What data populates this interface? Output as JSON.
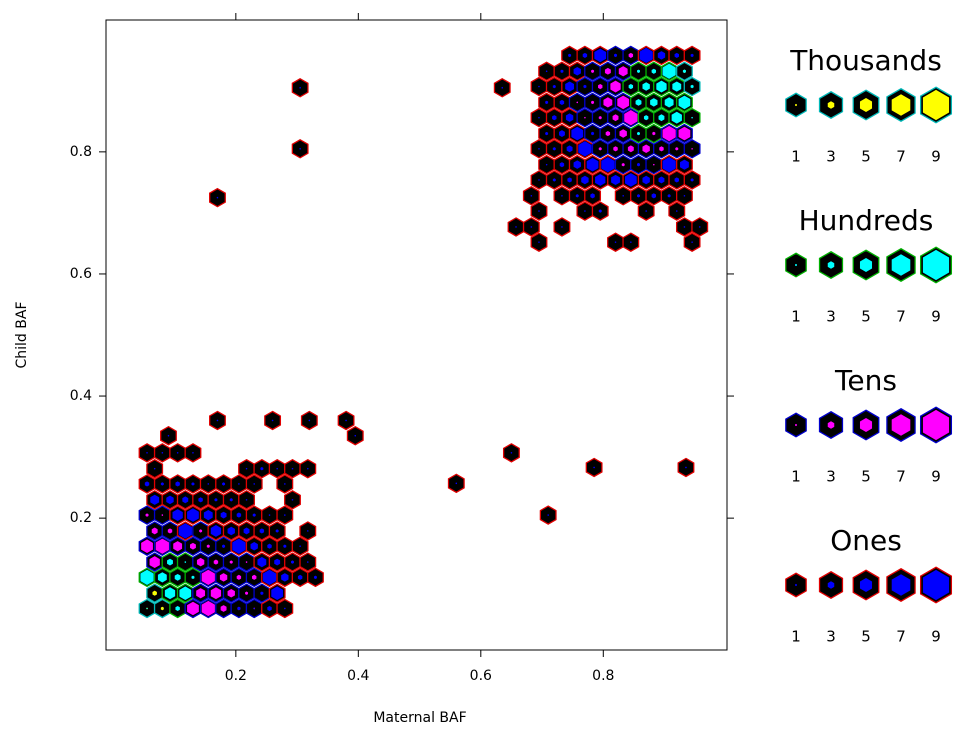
{
  "chart_data": {
    "type": "hexbin",
    "xlabel": "Maternal BAF",
    "ylabel": "Child BAF",
    "xlim": [
      -0.012,
      1.002
    ],
    "ylim": [
      -0.016,
      1.016
    ],
    "xticks": [
      0.2,
      0.4,
      0.6,
      0.8
    ],
    "yticks": [
      0.2,
      0.4,
      0.6,
      0.8
    ],
    "place_colors": {
      "border": [
        "#e00000",
        "#0000cc",
        "#00b000",
        "#00b8b8"
      ],
      "fill": [
        "#0000ff",
        "#ff00ff",
        "#00ffff",
        "#ffff00"
      ],
      "background": "#000000"
    },
    "x": [
      0.055,
      0.08,
      0.105,
      0.13,
      0.155,
      0.18,
      0.205,
      0.23,
      0.255,
      0.28,
      0.0675,
      0.0925,
      0.1175,
      0.1425,
      0.1675,
      0.1925,
      0.2175,
      0.2425,
      0.2675,
      0.055,
      0.08,
      0.105,
      0.13,
      0.155,
      0.18,
      0.205,
      0.23,
      0.255,
      0.28,
      0.305,
      0.33,
      0.0675,
      0.0925,
      0.1175,
      0.1425,
      0.1675,
      0.1925,
      0.2175,
      0.2425,
      0.2675,
      0.2925,
      0.3175,
      0.055,
      0.08,
      0.105,
      0.13,
      0.155,
      0.18,
      0.205,
      0.23,
      0.255,
      0.28,
      0.305,
      0.0675,
      0.0925,
      0.1175,
      0.1425,
      0.1675,
      0.1925,
      0.2175,
      0.2425,
      0.2675,
      0.3175,
      0.055,
      0.08,
      0.105,
      0.13,
      0.155,
      0.18,
      0.205,
      0.23,
      0.255,
      0.28,
      0.0675,
      0.0925,
      0.1175,
      0.1425,
      0.1675,
      0.1925,
      0.2175,
      0.2925,
      0.055,
      0.08,
      0.105,
      0.13,
      0.155,
      0.18,
      0.205,
      0.23,
      0.28,
      0.0675,
      0.2175,
      0.2425,
      0.2675,
      0.2925,
      0.3175,
      0.055,
      0.08,
      0.105,
      0.13,
      0.745,
      0.77,
      0.795,
      0.82,
      0.845,
      0.87,
      0.895,
      0.92,
      0.945,
      0.7075,
      0.7325,
      0.7575,
      0.7825,
      0.8075,
      0.8325,
      0.8575,
      0.8825,
      0.9075,
      0.9325,
      0.695,
      0.72,
      0.745,
      0.77,
      0.795,
      0.82,
      0.845,
      0.87,
      0.895,
      0.92,
      0.945,
      0.7075,
      0.7325,
      0.7575,
      0.7825,
      0.8075,
      0.8325,
      0.8575,
      0.8825,
      0.9075,
      0.9325,
      0.695,
      0.72,
      0.745,
      0.77,
      0.795,
      0.82,
      0.845,
      0.87,
      0.895,
      0.92,
      0.945,
      0.7075,
      0.7325,
      0.7575,
      0.7825,
      0.8075,
      0.8325,
      0.8575,
      0.8825,
      0.9075,
      0.9325,
      0.695,
      0.72,
      0.745,
      0.77,
      0.795,
      0.82,
      0.845,
      0.87,
      0.895,
      0.92,
      0.945,
      0.7075,
      0.7325,
      0.7575,
      0.7825,
      0.8075,
      0.8325,
      0.8575,
      0.8825,
      0.9075,
      0.9325,
      0.695,
      0.72,
      0.745,
      0.77,
      0.795,
      0.82,
      0.845,
      0.87,
      0.895,
      0.92,
      0.945,
      0.6825,
      0.7325,
      0.7575,
      0.7825,
      0.8325,
      0.8575,
      0.8825,
      0.9075,
      0.9325,
      0.695,
      0.77,
      0.795,
      0.87,
      0.92,
      0.6575,
      0.6825,
      0.7325,
      0.9325,
      0.9575,
      0.695,
      0.82,
      0.845,
      0.945,
      0.635,
      0.305,
      0.305,
      0.17,
      0.17,
      0.26,
      0.32,
      0.38,
      0.395,
      0.09,
      0.56,
      0.65,
      0.71,
      0.785,
      0.935
    ],
    "y": [
      0.052,
      0.052,
      0.052,
      0.052,
      0.052,
      0.052,
      0.052,
      0.052,
      0.052,
      0.052,
      0.077,
      0.077,
      0.077,
      0.077,
      0.077,
      0.077,
      0.077,
      0.077,
      0.077,
      0.103,
      0.103,
      0.103,
      0.103,
      0.103,
      0.103,
      0.103,
      0.103,
      0.103,
      0.103,
      0.103,
      0.103,
      0.128,
      0.128,
      0.128,
      0.128,
      0.128,
      0.128,
      0.128,
      0.128,
      0.128,
      0.128,
      0.128,
      0.154,
      0.154,
      0.154,
      0.154,
      0.154,
      0.154,
      0.154,
      0.154,
      0.154,
      0.154,
      0.154,
      0.179,
      0.179,
      0.179,
      0.179,
      0.179,
      0.179,
      0.179,
      0.179,
      0.179,
      0.179,
      0.205,
      0.205,
      0.205,
      0.205,
      0.205,
      0.205,
      0.205,
      0.205,
      0.205,
      0.205,
      0.23,
      0.23,
      0.23,
      0.23,
      0.23,
      0.23,
      0.23,
      0.23,
      0.256,
      0.256,
      0.256,
      0.256,
      0.256,
      0.256,
      0.256,
      0.256,
      0.256,
      0.281,
      0.281,
      0.281,
      0.281,
      0.281,
      0.281,
      0.307,
      0.307,
      0.307,
      0.307,
      0.958,
      0.958,
      0.958,
      0.958,
      0.958,
      0.958,
      0.958,
      0.958,
      0.958,
      0.932,
      0.932,
      0.932,
      0.932,
      0.932,
      0.932,
      0.932,
      0.932,
      0.932,
      0.932,
      0.907,
      0.907,
      0.907,
      0.907,
      0.907,
      0.907,
      0.907,
      0.907,
      0.907,
      0.907,
      0.907,
      0.881,
      0.881,
      0.881,
      0.881,
      0.881,
      0.881,
      0.881,
      0.881,
      0.881,
      0.881,
      0.856,
      0.856,
      0.856,
      0.856,
      0.856,
      0.856,
      0.856,
      0.856,
      0.856,
      0.856,
      0.856,
      0.83,
      0.83,
      0.83,
      0.83,
      0.83,
      0.83,
      0.83,
      0.83,
      0.83,
      0.83,
      0.805,
      0.805,
      0.805,
      0.805,
      0.805,
      0.805,
      0.805,
      0.805,
      0.805,
      0.805,
      0.805,
      0.779,
      0.779,
      0.779,
      0.779,
      0.779,
      0.779,
      0.779,
      0.779,
      0.779,
      0.779,
      0.754,
      0.754,
      0.754,
      0.754,
      0.754,
      0.754,
      0.754,
      0.754,
      0.754,
      0.754,
      0.754,
      0.728,
      0.728,
      0.728,
      0.728,
      0.728,
      0.728,
      0.728,
      0.728,
      0.728,
      0.703,
      0.703,
      0.703,
      0.703,
      0.703,
      0.677,
      0.677,
      0.677,
      0.677,
      0.677,
      0.652,
      0.652,
      0.652,
      0.652,
      0.905,
      0.905,
      0.805,
      0.725,
      0.36,
      0.36,
      0.36,
      0.36,
      0.335,
      0.335,
      0.257,
      0.307,
      0.205,
      0.283,
      0.283
    ],
    "values": [
      1200,
      2100,
      300,
      80,
      90,
      40,
      25,
      12,
      3,
      1,
      3100,
      700,
      800,
      60,
      70,
      50,
      20,
      15,
      8,
      900,
      600,
      400,
      200,
      90,
      50,
      30,
      30,
      9,
      5,
      3,
      2,
      70,
      400,
      100,
      50,
      30,
      20,
      10,
      6,
      4,
      2,
      1,
      80,
      90,
      60,
      40,
      20,
      15,
      9,
      5,
      3,
      2,
      1,
      40,
      30,
      9,
      20,
      7,
      5,
      4,
      3,
      2,
      1,
      20,
      10,
      7,
      8,
      6,
      4,
      3,
      2,
      1,
      1,
      6,
      5,
      4,
      3,
      2,
      2,
      1,
      1,
      3,
      2,
      3,
      2,
      1,
      2,
      1,
      1,
      1,
      1,
      1,
      2,
      1,
      1,
      1,
      1,
      1,
      1,
      1,
      2,
      3,
      8,
      15,
      30,
      9,
      5,
      3,
      2,
      1,
      2,
      5,
      20,
      40,
      60,
      200,
      300,
      900,
      2500,
      1,
      2,
      6,
      15,
      30,
      70,
      300,
      500,
      700,
      600,
      1500,
      2,
      3,
      10,
      20,
      60,
      80,
      400,
      500,
      600,
      800,
      1,
      3,
      5,
      10,
      20,
      40,
      90,
      300,
      400,
      700,
      100,
      2,
      4,
      8,
      15,
      30,
      50,
      200,
      150,
      90,
      80,
      1,
      2,
      4,
      9,
      20,
      30,
      40,
      50,
      30,
      20,
      10,
      1,
      3,
      5,
      8,
      9,
      20,
      15,
      10,
      9,
      6,
      1,
      2,
      3,
      5,
      7,
      6,
      8,
      5,
      4,
      3,
      2,
      1,
      1,
      2,
      3,
      1,
      2,
      3,
      2,
      1,
      1,
      1,
      2,
      1,
      1,
      1,
      1,
      1,
      1,
      1,
      1,
      1,
      1,
      1,
      1,
      1,
      1,
      1,
      1,
      1,
      1,
      1,
      1,
      1,
      1,
      1,
      1,
      1,
      1
    ],
    "legend": [
      {
        "title": "Thousands",
        "digits": [
          1,
          3,
          5,
          7,
          9
        ]
      },
      {
        "title": "Hundreds",
        "digits": [
          1,
          3,
          5,
          7,
          9
        ]
      },
      {
        "title": "Tens",
        "digits": [
          1,
          3,
          5,
          7,
          9
        ]
      },
      {
        "title": "Ones",
        "digits": [
          1,
          3,
          5,
          7,
          9
        ]
      }
    ]
  }
}
